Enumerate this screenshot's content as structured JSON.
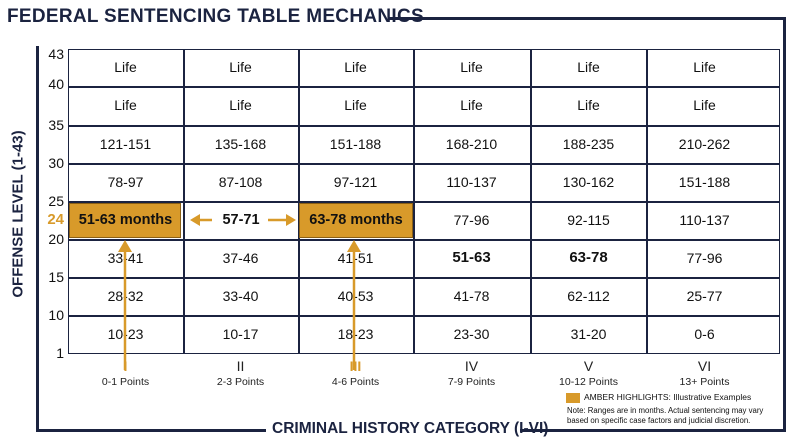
{
  "title": "FEDERAL SENTENCING TABLE MECHANICS",
  "x_axis_title": "CRIMINAL HISTORY CATEGORY (I-VI)",
  "y_axis_title": "OFFENSE LEVEL (1-43)",
  "y_ticks": [
    "43",
    "40",
    "35",
    "30",
    "25",
    "24",
    "20",
    "15",
    "10",
    "1"
  ],
  "columns": [
    {
      "category": "I",
      "points": "0-1 Points"
    },
    {
      "category": "II",
      "points": "2-3 Points"
    },
    {
      "category": "III",
      "points": "4-6 Points"
    },
    {
      "category": "IV",
      "points": "7-9 Points"
    },
    {
      "category": "V",
      "points": "10-12 Points"
    },
    {
      "category": "VI",
      "points": "13+ Points"
    }
  ],
  "rows": [
    [
      "Life",
      "Life",
      "Life",
      "Life",
      "Life",
      "Life"
    ],
    [
      "Life",
      "Life",
      "Life",
      "Life",
      "Life",
      "Life"
    ],
    [
      "121-151",
      "135-168",
      "151-188",
      "168-210",
      "188-235",
      "210-262"
    ],
    [
      "78-97",
      "87-108",
      "97-121",
      "110-137",
      "130-162",
      "151-188"
    ],
    [
      "51-63 months",
      "57-71",
      "63-78 months",
      "77-96",
      "92-115",
      "110-137"
    ],
    [
      "33-41",
      "37-46",
      "41-51",
      "51-63",
      "63-78",
      "77-96"
    ],
    [
      "28-32",
      "33-40",
      "40-53",
      "41-78",
      "62-112",
      "25-77"
    ],
    [
      "10-23",
      "10-17",
      "18-23",
      "23-30",
      "31-20",
      "0-6"
    ]
  ],
  "legend": {
    "label": "AMBER HIGHLIGHTS: Illustrative Examples",
    "note": "Note: Ranges are in months. Actual sentencing may vary based on specific case factors and judicial discretion."
  },
  "colors": {
    "amber": "#d89a2a",
    "navy": "#1b2340"
  }
}
